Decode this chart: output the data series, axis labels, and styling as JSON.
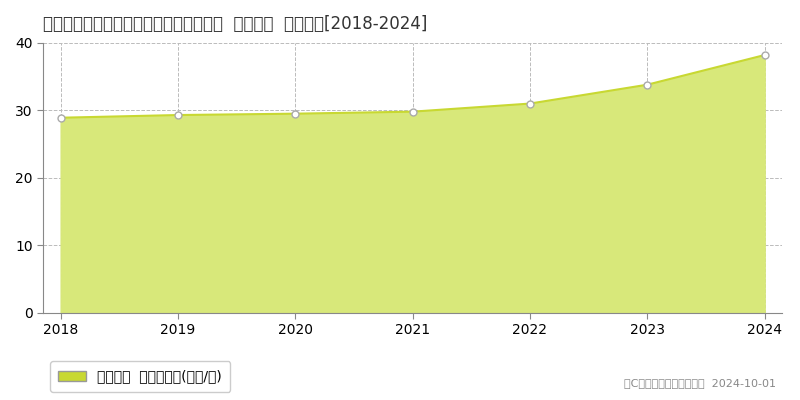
{
  "title": "茨城県つくば市学園の森２丁目２９番３  基準地価  地価推移[2018-2024]",
  "years": [
    2018,
    2019,
    2020,
    2021,
    2022,
    2023,
    2024
  ],
  "values": [
    28.9,
    29.3,
    29.5,
    29.8,
    31.0,
    33.8,
    38.2
  ],
  "ylim": [
    0,
    40
  ],
  "yticks": [
    0,
    10,
    20,
    30,
    40
  ],
  "line_color": "#c8d832",
  "fill_color": "#d8e87a",
  "fill_alpha": 1.0,
  "marker_color": "#ffffff",
  "marker_edge_color": "#aaaaaa",
  "bg_color": "#ffffff",
  "grid_color": "#bbbbbb",
  "grid_style": "--",
  "legend_label": "基準地価  平均坪単価(万円/坪)",
  "copyright_text": "（C）土地価格ドットコム  2024-10-01",
  "title_fontsize": 12,
  "axis_fontsize": 10,
  "legend_fontsize": 10
}
